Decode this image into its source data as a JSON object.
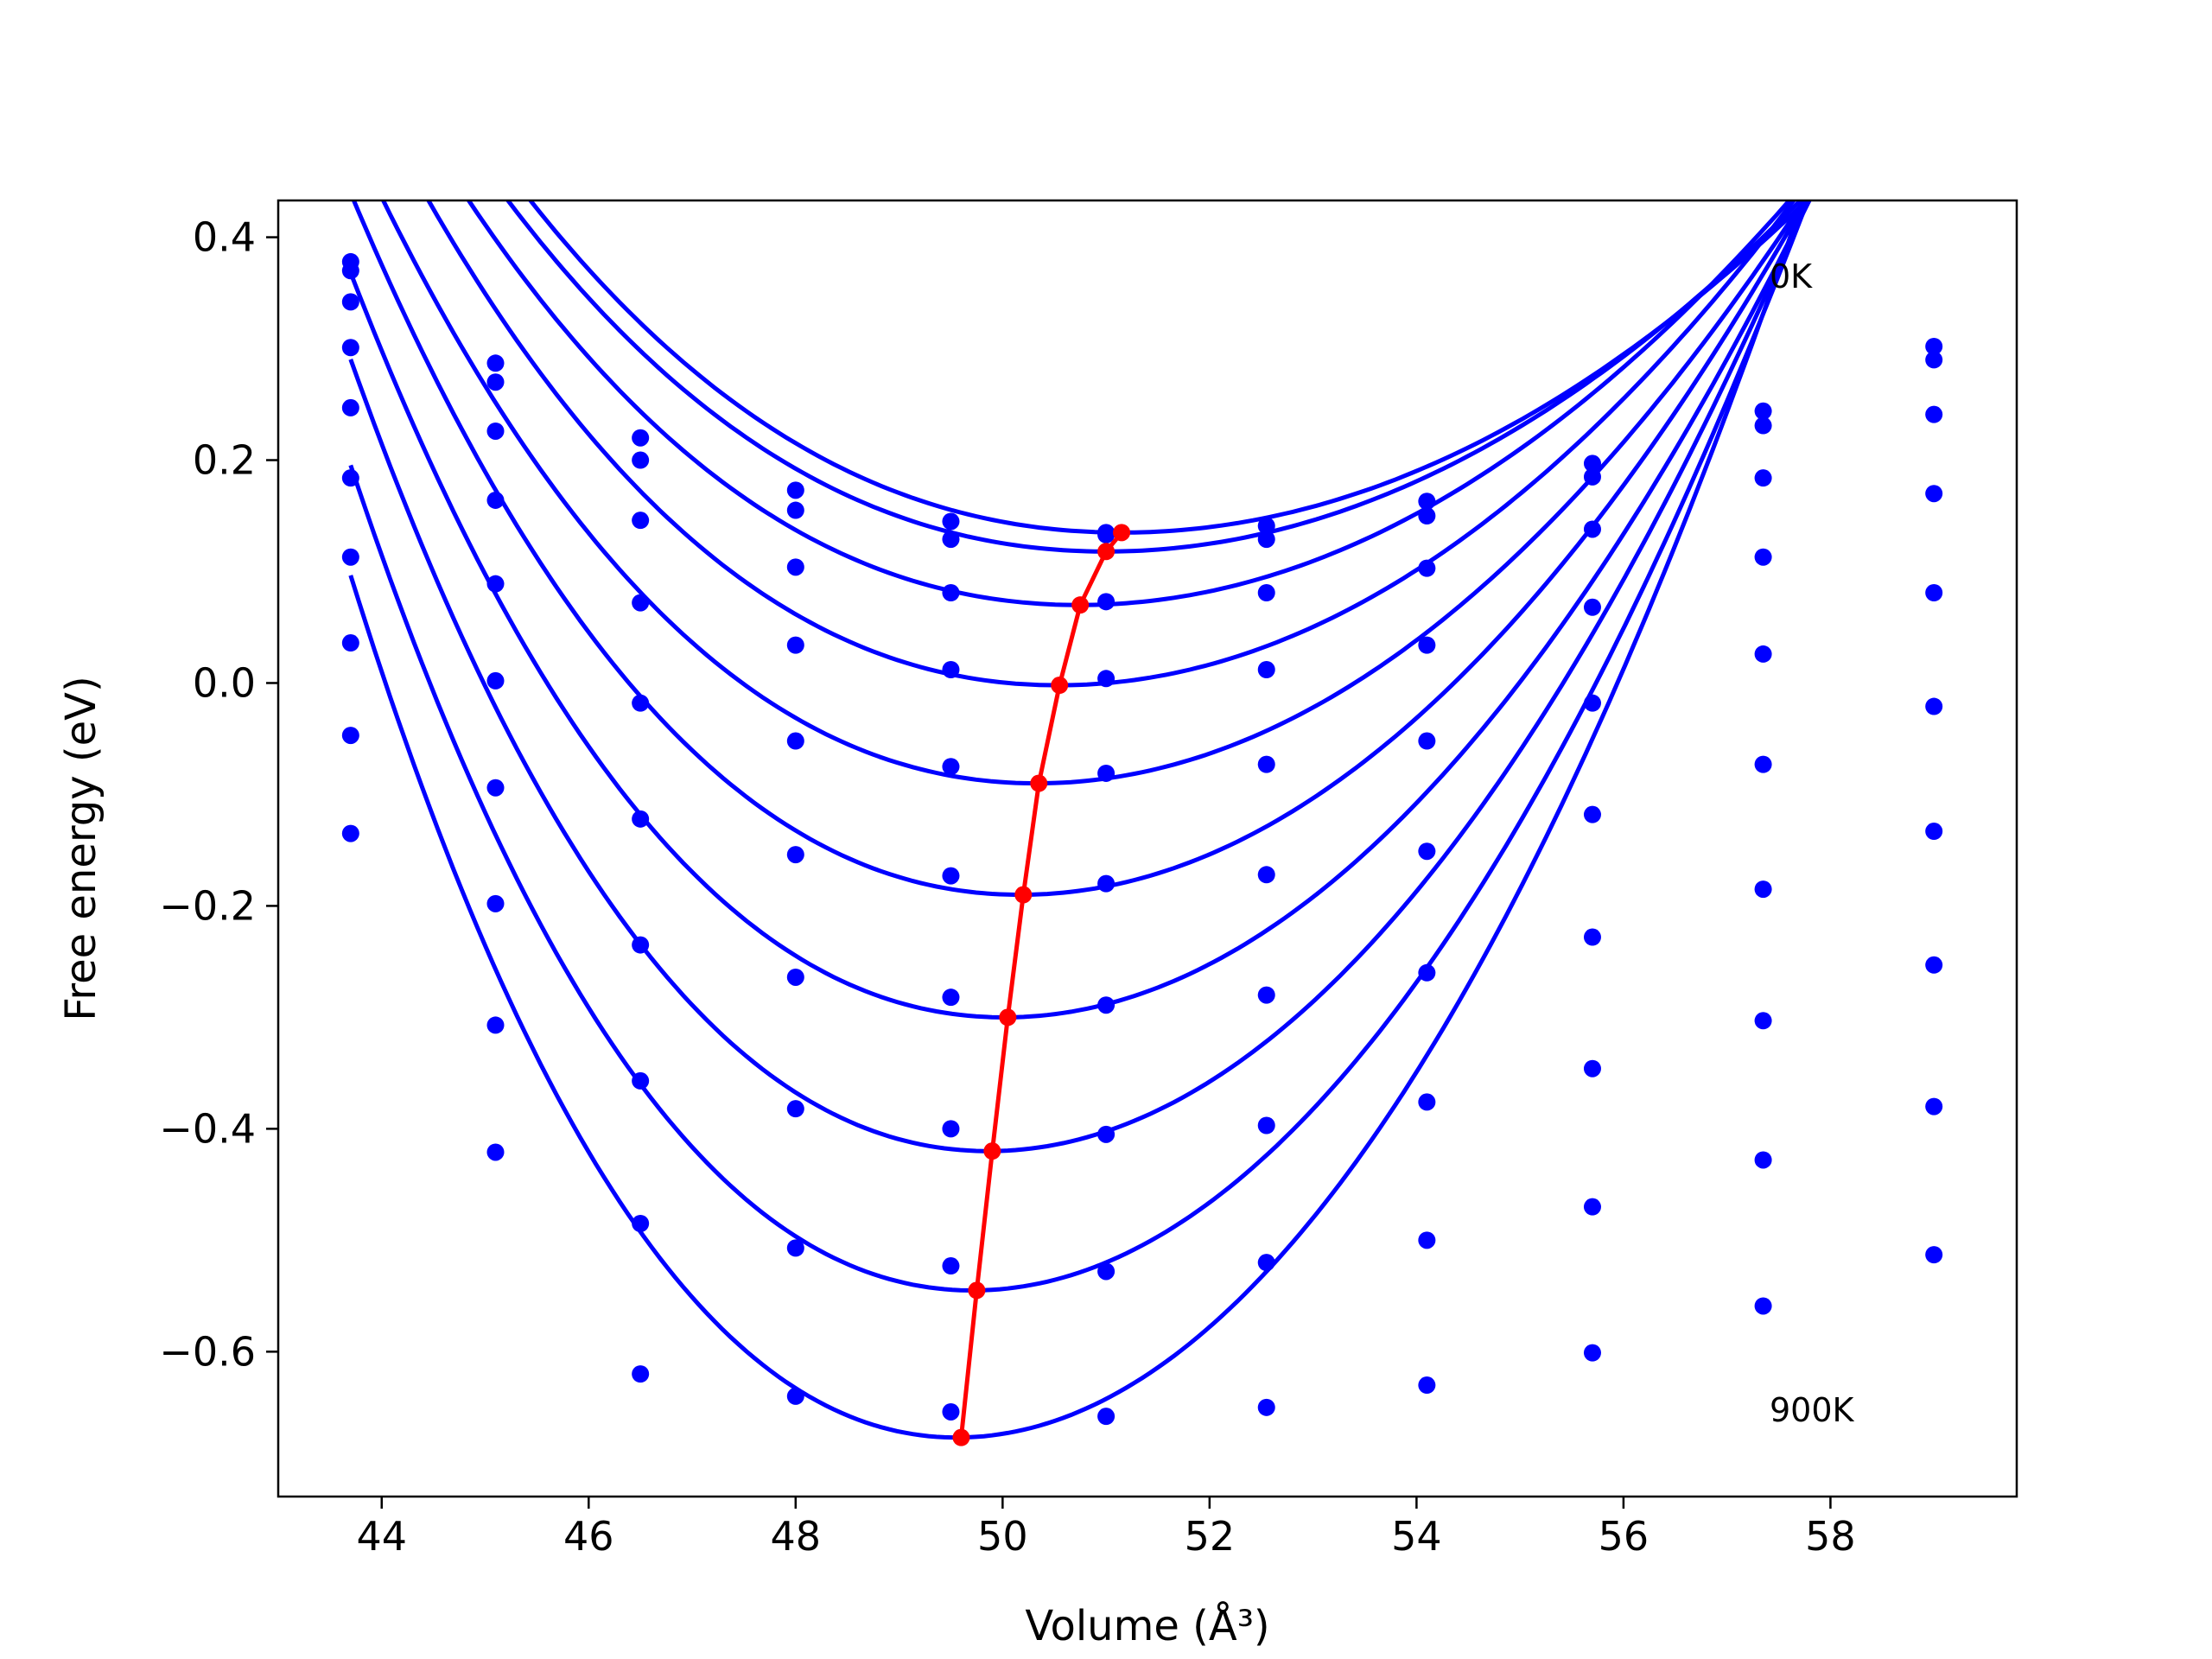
{
  "chart_data": {
    "type": "line",
    "title": "",
    "xlabel": "Volume (Å³)",
    "ylabel": "Free energy (eV)",
    "xlim": [
      43.0,
      59.8
    ],
    "ylim": [
      -0.73,
      0.433
    ],
    "xticks": [
      44,
      46,
      48,
      50,
      52,
      54,
      56,
      58
    ],
    "xtick_labels": [
      "44",
      "46",
      "48",
      "50",
      "52",
      "54",
      "56",
      "58"
    ],
    "yticks": [
      -0.6,
      -0.4,
      -0.2,
      0.0,
      0.2,
      0.4
    ],
    "ytick_labels": [
      "−0.6",
      "−0.4",
      "−0.2",
      "0.0",
      "0.2",
      "0.4"
    ],
    "grid": false,
    "legend": "none",
    "colors": {
      "isotherms": "#0000ff",
      "equilibrium": "#ff0000",
      "axes": "#000000"
    },
    "annotations": [
      {
        "text": "0K",
        "x": 57.3,
        "y": 0.36
      },
      {
        "text": "900K",
        "x": 57.3,
        "y": -0.66
      }
    ],
    "volumes": [
      43.7,
      45.1,
      46.5,
      48.0,
      49.5,
      51.0,
      52.55,
      54.1,
      55.7,
      57.35,
      59.0
    ],
    "fit_range": [
      43.7,
      59.0
    ],
    "isotherms": [
      {
        "points": [
          0.378,
          0.287,
          0.22,
          0.173,
          0.145,
          0.135,
          0.141,
          0.163,
          0.197,
          0.244,
          0.302
        ],
        "fit": {
          "v0": 51.15,
          "e0": 0.135,
          "a": 0.0068,
          "b": 0.0
        }
      },
      {
        "points": [
          0.37,
          0.27,
          0.2,
          0.155,
          0.129,
          0.133,
          0.129,
          0.15,
          0.185,
          0.231,
          0.29
        ],
        "fit": {
          "v0": 51.0,
          "e0": 0.118,
          "a": 0.007,
          "b": 0.0
        }
      },
      {
        "points": [
          0.342,
          0.226,
          0.146,
          0.104,
          0.081,
          0.073,
          0.081,
          0.103,
          0.138,
          0.184,
          0.241
        ],
        "fit": {
          "v0": 50.75,
          "e0": 0.07,
          "a": 0.0077,
          "b": 0.0002
        }
      },
      {
        "points": [
          0.301,
          0.164,
          0.072,
          0.034,
          0.012,
          0.004,
          0.012,
          0.034,
          0.068,
          0.113,
          0.17
        ],
        "fit": {
          "v0": 50.55,
          "e0": -0.002,
          "a": 0.0086,
          "b": 0.0003
        }
      },
      {
        "points": [
          0.247,
          0.089,
          -0.018,
          -0.052,
          -0.075,
          -0.081,
          -0.073,
          -0.052,
          -0.018,
          0.026,
          0.081
        ],
        "fit": {
          "v0": 50.35,
          "e0": -0.09,
          "a": 0.0095,
          "b": 0.0005
        }
      },
      {
        "points": [
          0.184,
          0.002,
          -0.122,
          -0.154,
          -0.173,
          -0.18,
          -0.172,
          -0.151,
          -0.118,
          -0.073,
          -0.021
        ],
        "fit": {
          "v0": 50.2,
          "e0": -0.19,
          "a": 0.0108,
          "b": 0.0007
        }
      },
      {
        "points": [
          0.113,
          -0.094,
          -0.235,
          -0.264,
          -0.282,
          -0.289,
          -0.28,
          -0.26,
          -0.228,
          -0.185,
          -0.133
        ],
        "fit": {
          "v0": 50.05,
          "e0": -0.3,
          "a": 0.0121,
          "b": 0.0009
        }
      },
      {
        "points": [
          0.036,
          -0.198,
          -0.357,
          -0.382,
          -0.4,
          -0.405,
          -0.397,
          -0.376,
          -0.346,
          -0.303,
          -0.253
        ],
        "fit": {
          "v0": 49.9,
          "e0": -0.42,
          "a": 0.0136,
          "b": 0.0011
        }
      },
      {
        "points": [
          -0.047,
          -0.307,
          -0.485,
          -0.507,
          -0.523,
          -0.528,
          -0.52,
          -0.5,
          -0.47,
          -0.428,
          -0.38
        ],
        "fit": {
          "v0": 49.75,
          "e0": -0.545,
          "a": 0.015,
          "b": 0.0013
        }
      },
      {
        "points": [
          -0.135,
          -0.421,
          -0.62,
          -0.64,
          -0.654,
          -0.658,
          -0.65,
          -0.63,
          -0.601,
          -0.559,
          -0.513
        ],
        "fit": {
          "v0": 49.6,
          "e0": -0.677,
          "a": 0.0166,
          "b": 0.0015
        }
      }
    ],
    "equilibrium_line": {
      "x": [
        51.15,
        51.0,
        50.75,
        50.55,
        50.35,
        50.2,
        50.05,
        49.9,
        49.75,
        49.6
      ],
      "y": [
        0.135,
        0.118,
        0.07,
        -0.002,
        -0.09,
        -0.19,
        -0.3,
        -0.42,
        -0.545,
        -0.677
      ]
    }
  }
}
